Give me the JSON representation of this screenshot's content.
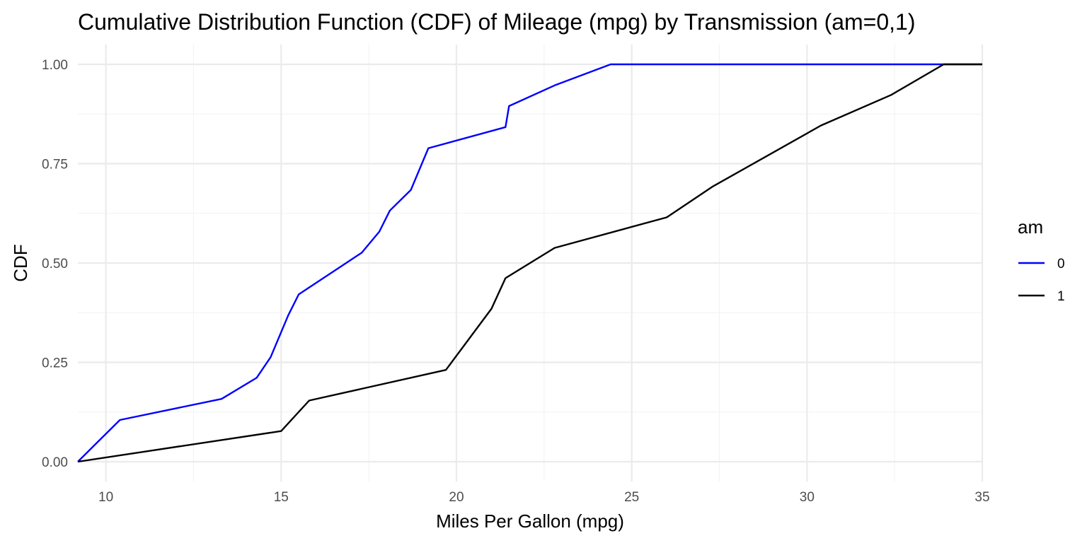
{
  "chart_data": {
    "type": "line",
    "title": "Cumulative Distribution Function (CDF) of Mileage (mpg) by Transmission (am=0,1)",
    "xlabel": "Miles Per Gallon (mpg)",
    "ylabel": "CDF",
    "xlim": [
      9.2,
      35.0
    ],
    "ylim": [
      0,
      1
    ],
    "x_ticks": [
      10,
      15,
      20,
      25,
      30,
      35
    ],
    "x_tick_labels": [
      "10",
      "15",
      "20",
      "25",
      "30",
      "35"
    ],
    "y_ticks": [
      0,
      0.25,
      0.5,
      0.75,
      1.0
    ],
    "y_tick_labels": [
      "0.00",
      "0.25",
      "0.50",
      "0.75",
      "1.00"
    ],
    "grid": true,
    "legend": {
      "title": "am",
      "position": "right"
    },
    "series": [
      {
        "name": "0",
        "color": "#0000ff",
        "x": [
          9.2,
          10.4,
          13.3,
          14.3,
          14.7,
          15.2,
          15.5,
          17.3,
          17.8,
          18.1,
          18.7,
          19.2,
          21.4,
          21.5,
          22.8,
          24.4,
          33.9,
          35.0
        ],
        "y": [
          0.0,
          0.105,
          0.158,
          0.211,
          0.263,
          0.368,
          0.421,
          0.526,
          0.579,
          0.632,
          0.684,
          0.789,
          0.842,
          0.895,
          0.947,
          1.0,
          1.0,
          1.0
        ]
      },
      {
        "name": "1",
        "color": "#000000",
        "x": [
          9.2,
          15.0,
          15.8,
          19.7,
          21.0,
          21.4,
          22.8,
          26.0,
          27.3,
          30.4,
          32.4,
          33.9,
          35.0
        ],
        "y": [
          0.0,
          0.077,
          0.154,
          0.231,
          0.385,
          0.462,
          0.538,
          0.615,
          0.692,
          0.846,
          0.923,
          1.0,
          1.0
        ]
      }
    ]
  }
}
